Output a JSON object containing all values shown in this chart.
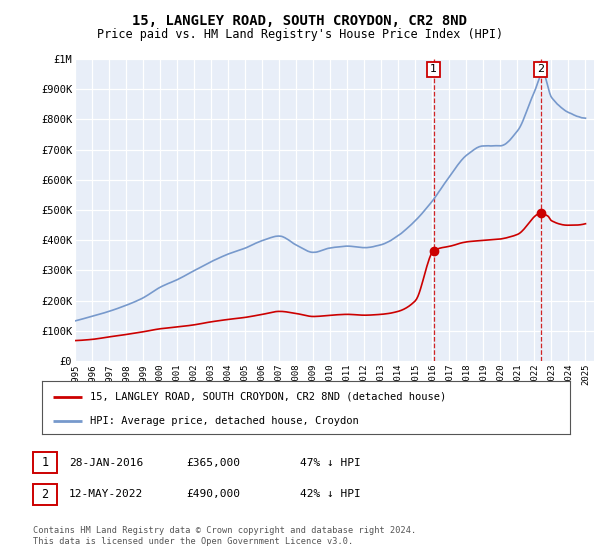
{
  "title": "15, LANGLEY ROAD, SOUTH CROYDON, CR2 8ND",
  "subtitle": "Price paid vs. HM Land Registry's House Price Index (HPI)",
  "title_fontsize": 10,
  "subtitle_fontsize": 8.5,
  "background_color": "#ffffff",
  "plot_bg_color": "#e8eef8",
  "grid_color": "#ffffff",
  "hpi_color": "#7799cc",
  "sale_color": "#cc0000",
  "ylim": [
    0,
    1000000
  ],
  "yticks": [
    0,
    100000,
    200000,
    300000,
    400000,
    500000,
    600000,
    700000,
    800000,
    900000,
    1000000
  ],
  "ytick_labels": [
    "£0",
    "£100K",
    "£200K",
    "£300K",
    "£400K",
    "£500K",
    "£600K",
    "£700K",
    "£800K",
    "£900K",
    "£1M"
  ],
  "sale_points": [
    {
      "year": 2016.07,
      "price": 365000,
      "label": "1"
    },
    {
      "year": 2022.36,
      "price": 490000,
      "label": "2"
    }
  ],
  "annotation1": {
    "label": "1",
    "date": "28-JAN-2016",
    "price": "£365,000",
    "pct": "47% ↓ HPI"
  },
  "annotation2": {
    "label": "2",
    "date": "12-MAY-2022",
    "price": "£490,000",
    "pct": "42% ↓ HPI"
  },
  "legend_line1": "15, LANGLEY ROAD, SOUTH CROYDON, CR2 8ND (detached house)",
  "legend_line2": "HPI: Average price, detached house, Croydon",
  "footer": "Contains HM Land Registry data © Crown copyright and database right 2024.\nThis data is licensed under the Open Government Licence v3.0.",
  "xtick_years": [
    1995,
    1996,
    1997,
    1998,
    1999,
    2000,
    2001,
    2002,
    2003,
    2004,
    2005,
    2006,
    2007,
    2008,
    2009,
    2010,
    2011,
    2012,
    2013,
    2014,
    2015,
    2016,
    2017,
    2018,
    2019,
    2020,
    2021,
    2022,
    2023,
    2024,
    2025
  ]
}
